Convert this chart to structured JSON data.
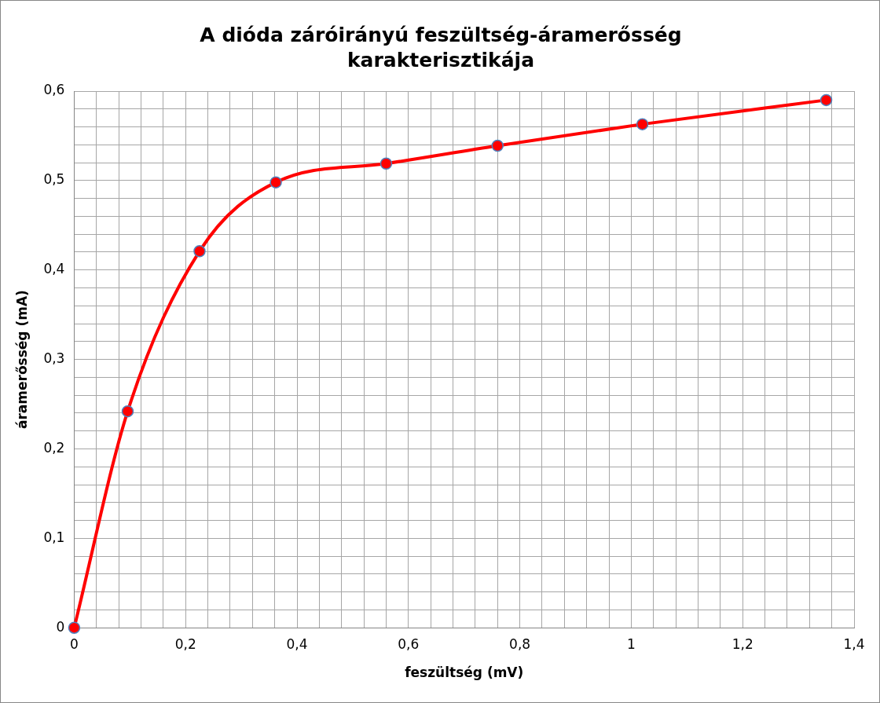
{
  "chart_data": {
    "type": "line",
    "title": "A dióda záróirányú feszültség-áramerősség karakterisztikája",
    "xlabel": "feszültség (mV)",
    "ylabel": "áramerősség (mA)",
    "x": [
      0,
      0.096,
      0.225,
      0.362,
      0.56,
      0.76,
      1.02,
      1.35
    ],
    "series": [
      {
        "color": "#ff0000",
        "values": [
          0,
          0.242,
          0.421,
          0.498,
          0.519,
          0.539,
          0.563,
          0.59
        ]
      }
    ],
    "xlim": [
      0,
      1.4
    ],
    "ylim": [
      0,
      0.6
    ],
    "xticks": [
      0,
      {
        "value": 0.04,
        "label": null
      },
      {
        "value": 0.08,
        "label": null
      },
      {
        "value": 0.12,
        "label": null
      },
      {
        "value": 0.16,
        "label": null
      },
      {
        "value": 0.2,
        "label": "0,2"
      },
      {
        "value": 0.24,
        "label": null
      },
      {
        "value": 0.28,
        "label": null
      },
      {
        "value": 0.32,
        "label": null
      },
      {
        "value": 0.36,
        "label": null
      },
      {
        "value": 0.4,
        "label": "0,4"
      },
      {
        "value": 0.44,
        "label": null
      },
      {
        "value": 0.48,
        "label": null
      },
      {
        "value": 0.52,
        "label": null
      },
      {
        "value": 0.56,
        "label": null
      },
      {
        "value": 0.6,
        "label": "0,6"
      },
      {
        "value": 0.64,
        "label": null
      },
      {
        "value": 0.68,
        "label": null
      },
      {
        "value": 0.72,
        "label": null
      },
      {
        "value": 0.76,
        "label": null
      },
      {
        "value": 0.8,
        "label": "0,8"
      },
      {
        "value": 0.84,
        "label": null
      },
      {
        "value": 0.88,
        "label": null
      },
      {
        "value": 0.92,
        "label": null
      },
      {
        "value": 0.96,
        "label": null
      },
      1,
      {
        "value": 1.04,
        "label": null
      },
      {
        "value": 1.08,
        "label": null
      },
      {
        "value": 1.12,
        "label": null
      },
      {
        "value": 1.16,
        "label": null
      },
      {
        "value": 1.2,
        "label": "1,2"
      },
      {
        "value": 1.24,
        "label": null
      },
      {
        "value": 1.28,
        "label": null
      },
      {
        "value": 1.32,
        "label": null
      },
      {
        "value": 1.36,
        "label": null
      },
      {
        "value": 1.4,
        "label": "1,4"
      }
    ],
    "yticks": [
      0,
      {
        "value": 0.02,
        "label": null
      },
      {
        "value": 0.04,
        "label": null
      },
      {
        "value": 0.06,
        "label": null
      },
      {
        "value": 0.08,
        "label": null
      },
      {
        "value": 0.1,
        "label": "0,1"
      },
      {
        "value": 0.12,
        "label": null
      },
      {
        "value": 0.14,
        "label": null
      },
      {
        "value": 0.16,
        "label": null
      },
      {
        "value": 0.18,
        "label": null
      },
      {
        "value": 0.2,
        "label": "0,2"
      },
      {
        "value": 0.22,
        "label": null
      },
      {
        "value": 0.24,
        "label": null
      },
      {
        "value": 0.26,
        "label": null
      },
      {
        "value": 0.28,
        "label": null
      },
      {
        "value": 0.3,
        "label": "0,3"
      },
      {
        "value": 0.32,
        "label": null
      },
      {
        "value": 0.34,
        "label": null
      },
      {
        "value": 0.36,
        "label": null
      },
      {
        "value": 0.38,
        "label": null
      },
      {
        "value": 0.4,
        "label": "0,4"
      },
      {
        "value": 0.42,
        "label": null
      },
      {
        "value": 0.44,
        "label": null
      },
      {
        "value": 0.46,
        "label": null
      },
      {
        "value": 0.48,
        "label": null
      },
      {
        "value": 0.5,
        "label": "0,5"
      },
      {
        "value": 0.52,
        "label": null
      },
      {
        "value": 0.54,
        "label": null
      },
      {
        "value": 0.56,
        "label": null
      },
      {
        "value": 0.58,
        "label": null
      },
      {
        "value": 0.6,
        "label": "0,6"
      }
    ],
    "grid": true,
    "legend": false,
    "marker": "circle",
    "line_style": "solid"
  }
}
